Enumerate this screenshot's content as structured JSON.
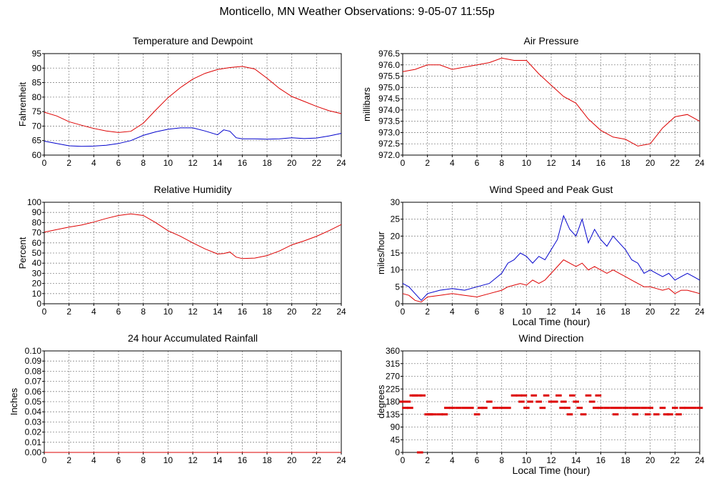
{
  "page_title": "Monticello, MN Weather Observations: 9-05-07 11:55p",
  "colors": {
    "red": "#dd0000",
    "blue": "#0000cc",
    "grid": "#888888",
    "frame": "#000000"
  },
  "chart_data": [
    {
      "id": "temp",
      "type": "line",
      "title": "Temperature and Dewpoint",
      "xlabel": "",
      "ylabel": "Fahrenheit",
      "xlim": [
        0,
        24
      ],
      "ylim": [
        60,
        95
      ],
      "xticks": [
        0,
        2,
        4,
        6,
        8,
        10,
        12,
        14,
        16,
        18,
        20,
        22,
        24
      ],
      "yticks": [
        60,
        65,
        70,
        75,
        80,
        85,
        90,
        95
      ],
      "grid": true,
      "series": [
        {
          "color": "red",
          "x": [
            0,
            1,
            2,
            3,
            4,
            5,
            6,
            7,
            8,
            9,
            10,
            11,
            12,
            13,
            14,
            15,
            16,
            17,
            18,
            19,
            20,
            21,
            22,
            23,
            24
          ],
          "y": [
            74.8,
            73.5,
            71.5,
            70.3,
            69.2,
            68.3,
            67.8,
            68.2,
            71,
            75.5,
            79.8,
            83.3,
            86.2,
            88.2,
            89.5,
            90.2,
            90.6,
            89.7,
            86.5,
            83,
            80.2,
            78.5,
            76.8,
            75.3,
            74.3
          ]
        },
        {
          "color": "blue",
          "x": [
            0,
            1,
            2,
            3,
            4,
            5,
            6,
            7,
            8,
            9,
            10,
            11,
            12,
            13,
            14,
            14.5,
            15,
            15.5,
            16,
            17,
            18,
            19,
            20,
            21,
            22,
            23,
            24
          ],
          "y": [
            64.8,
            64,
            63.2,
            63,
            63.1,
            63.4,
            64,
            65,
            66.8,
            68,
            68.9,
            69.4,
            69.4,
            68.3,
            67,
            68.7,
            68.2,
            66,
            65.6,
            65.6,
            65.5,
            65.6,
            66,
            65.7,
            65.9,
            66.6,
            67.5
          ]
        }
      ]
    },
    {
      "id": "pressure",
      "type": "line",
      "title": "Air Pressure",
      "xlabel": "",
      "ylabel": "millibars",
      "xlim": [
        0,
        24
      ],
      "ylim": [
        972.0,
        976.5
      ],
      "xticks": [
        0,
        2,
        4,
        6,
        8,
        10,
        12,
        14,
        16,
        18,
        20,
        22,
        24
      ],
      "yticks": [
        "972.0",
        "972.5",
        "973.0",
        "973.5",
        "974.0",
        "974.5",
        "975.0",
        "975.5",
        "976.0",
        "976.5"
      ],
      "grid": true,
      "series": [
        {
          "color": "red",
          "x": [
            0,
            1,
            2,
            3,
            4,
            5,
            6,
            7,
            8,
            9,
            10,
            11,
            12,
            13,
            14,
            15,
            16,
            17,
            18,
            19,
            20,
            21,
            22,
            23,
            24
          ],
          "y": [
            975.7,
            975.8,
            976.0,
            976.0,
            975.8,
            975.9,
            976.0,
            976.1,
            976.3,
            976.2,
            976.2,
            975.6,
            975.1,
            974.6,
            974.3,
            973.6,
            973.1,
            972.8,
            972.7,
            972.4,
            972.5,
            973.2,
            973.7,
            973.8,
            973.5
          ]
        }
      ]
    },
    {
      "id": "humidity",
      "type": "line",
      "title": "Relative Humidity",
      "xlabel": "",
      "ylabel": "Percent",
      "xlim": [
        0,
        24
      ],
      "ylim": [
        0,
        100
      ],
      "xticks": [
        0,
        2,
        4,
        6,
        8,
        10,
        12,
        14,
        16,
        18,
        20,
        22,
        24
      ],
      "yticks": [
        0,
        10,
        20,
        30,
        40,
        50,
        60,
        70,
        80,
        90,
        100
      ],
      "grid": true,
      "series": [
        {
          "color": "red",
          "x": [
            0,
            1,
            2,
            3,
            4,
            5,
            6,
            7,
            8,
            9,
            10,
            11,
            12,
            13,
            14,
            14.5,
            15,
            15.5,
            16,
            17,
            18,
            19,
            20,
            21,
            22,
            23,
            24
          ],
          "y": [
            70.5,
            73,
            75.5,
            77.5,
            80.5,
            84,
            87,
            88.5,
            87,
            80,
            72,
            66.5,
            60,
            54,
            49,
            49.5,
            51,
            46,
            44.5,
            45,
            47.5,
            52,
            58,
            62,
            66.5,
            72,
            78
          ]
        }
      ]
    },
    {
      "id": "wind",
      "type": "line",
      "title": "Wind Speed and Peak Gust",
      "xlabel": "Local Time (hour)",
      "ylabel": "miles/hour",
      "xlim": [
        0,
        24
      ],
      "ylim": [
        0,
        30
      ],
      "xticks": [
        0,
        2,
        4,
        6,
        8,
        10,
        12,
        14,
        16,
        18,
        20,
        22,
        24
      ],
      "yticks": [
        0,
        5,
        10,
        15,
        20,
        25,
        30
      ],
      "grid": true,
      "series": [
        {
          "color": "blue",
          "x": [
            0,
            0.5,
            1,
            1.5,
            2,
            3,
            4,
            5,
            6,
            7,
            8,
            8.5,
            9,
            9.5,
            10,
            10.5,
            11,
            11.5,
            12,
            12.5,
            13,
            13.5,
            14,
            14.5,
            15,
            15.5,
            16,
            16.5,
            17,
            17.5,
            18,
            18.5,
            19,
            19.5,
            20,
            20.5,
            21,
            21.5,
            22,
            22.5,
            23,
            23.5,
            24
          ],
          "y": [
            6,
            5,
            3,
            1,
            3,
            4,
            4.5,
            4,
            5,
            6,
            9,
            12,
            13,
            15,
            14,
            12,
            14,
            13,
            16,
            19,
            26,
            22,
            20,
            25,
            18,
            22,
            19,
            17,
            20,
            18,
            16,
            13,
            12,
            9,
            10,
            9,
            8,
            9,
            7,
            8,
            9,
            8,
            7
          ]
        },
        {
          "color": "red",
          "x": [
            0,
            0.5,
            1,
            1.5,
            2,
            3,
            4,
            5,
            6,
            7,
            8,
            8.5,
            9,
            9.5,
            10,
            10.5,
            11,
            11.5,
            12,
            12.5,
            13,
            13.5,
            14,
            14.5,
            15,
            15.5,
            16,
            16.5,
            17,
            17.5,
            18,
            18.5,
            19,
            19.5,
            20,
            20.5,
            21,
            21.5,
            22,
            22.5,
            23,
            23.5,
            24
          ],
          "y": [
            3,
            2.5,
            1,
            0.5,
            2,
            2.5,
            3,
            2.5,
            2,
            3,
            4,
            5,
            5.5,
            6,
            5.5,
            7,
            6,
            7,
            9,
            11,
            13,
            12,
            11,
            12,
            10,
            11,
            10,
            9,
            10,
            9,
            8,
            7,
            6,
            5,
            5,
            4.5,
            4,
            4.5,
            3,
            4,
            4,
            3.5,
            3
          ]
        }
      ]
    },
    {
      "id": "rain",
      "type": "line",
      "title": "24 hour Accumulated Rainfall",
      "xlabel": "",
      "ylabel": "Inches",
      "xlim": [
        0,
        24
      ],
      "ylim": [
        0,
        0.1
      ],
      "xticks": [
        0,
        2,
        4,
        6,
        8,
        10,
        12,
        14,
        16,
        18,
        20,
        22,
        24
      ],
      "yticks": [
        "0.00",
        "0.01",
        "0.02",
        "0.03",
        "0.04",
        "0.05",
        "0.06",
        "0.07",
        "0.08",
        "0.09",
        "0.10"
      ],
      "grid": true,
      "series": [
        {
          "color": "red",
          "x": [
            0,
            24
          ],
          "y": [
            0,
            0
          ]
        }
      ]
    },
    {
      "id": "direction",
      "type": "scatter",
      "title": "Wind Direction",
      "xlabel": "Local Time (hour)",
      "ylabel": "degrees",
      "xlim": [
        0,
        24
      ],
      "ylim": [
        0,
        360
      ],
      "xticks": [
        0,
        2,
        4,
        6,
        8,
        10,
        12,
        14,
        16,
        18,
        20,
        22,
        24
      ],
      "yticks": [
        0,
        45,
        90,
        135,
        180,
        225,
        270,
        315,
        360
      ],
      "grid": true,
      "series": [
        {
          "color": "red",
          "dash_width": 0.5,
          "points": [
            [
              0.0,
              180
            ],
            [
              0.2,
              158
            ],
            [
              0.4,
              180
            ],
            [
              0.6,
              158
            ],
            [
              0.8,
              202
            ],
            [
              1.0,
              202
            ],
            [
              1.3,
              202
            ],
            [
              1.6,
              202
            ],
            [
              1.4,
              0
            ],
            [
              2.0,
              135
            ],
            [
              2.2,
              135
            ],
            [
              2.5,
              135
            ],
            [
              3.0,
              135
            ],
            [
              3.4,
              135
            ],
            [
              3.6,
              158
            ],
            [
              4.0,
              158
            ],
            [
              4.5,
              158
            ],
            [
              5.0,
              158
            ],
            [
              5.5,
              158
            ],
            [
              6.0,
              135
            ],
            [
              6.3,
              158
            ],
            [
              6.6,
              158
            ],
            [
              7.0,
              180
            ],
            [
              7.5,
              158
            ],
            [
              8.0,
              158
            ],
            [
              8.5,
              158
            ],
            [
              9.0,
              202
            ],
            [
              9.4,
              202
            ],
            [
              9.8,
              202
            ],
            [
              9.6,
              180
            ],
            [
              10.0,
              158
            ],
            [
              10.3,
              180
            ],
            [
              10.6,
              202
            ],
            [
              11.0,
              180
            ],
            [
              11.3,
              158
            ],
            [
              11.6,
              202
            ],
            [
              12.0,
              180
            ],
            [
              12.3,
              180
            ],
            [
              12.6,
              202
            ],
            [
              12.9,
              158
            ],
            [
              13.0,
              180
            ],
            [
              13.3,
              158
            ],
            [
              13.5,
              135
            ],
            [
              13.7,
              202
            ],
            [
              14.0,
              180
            ],
            [
              14.3,
              158
            ],
            [
              14.6,
              135
            ],
            [
              15.0,
              202
            ],
            [
              15.3,
              180
            ],
            [
              15.6,
              158
            ],
            [
              15.8,
              202
            ],
            [
              16.0,
              158
            ],
            [
              16.5,
              158
            ],
            [
              17.0,
              158
            ],
            [
              17.2,
              135
            ],
            [
              17.5,
              158
            ],
            [
              18.0,
              158
            ],
            [
              18.5,
              158
            ],
            [
              18.8,
              135
            ],
            [
              19.0,
              158
            ],
            [
              19.5,
              158
            ],
            [
              19.8,
              135
            ],
            [
              20.0,
              158
            ],
            [
              20.5,
              135
            ],
            [
              21.0,
              158
            ],
            [
              21.3,
              135
            ],
            [
              21.6,
              135
            ],
            [
              22.0,
              158
            ],
            [
              22.3,
              135
            ],
            [
              22.6,
              158
            ],
            [
              23.0,
              158
            ],
            [
              23.5,
              158
            ],
            [
              24.0,
              158
            ]
          ]
        }
      ]
    }
  ]
}
